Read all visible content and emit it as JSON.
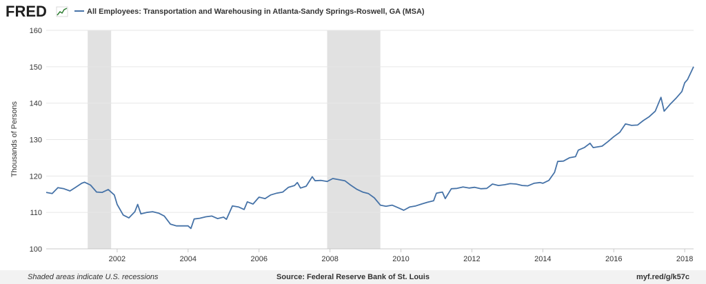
{
  "brand": {
    "logo_text": "FRED"
  },
  "chart_data": {
    "type": "line",
    "title": "All Employees: Transportation and Warehousing in Atlanta-Sandy Springs-Roswell, GA (MSA)",
    "xlabel": "",
    "ylabel": "Thousands of Persons",
    "xlim": [
      2000.0,
      2018.25
    ],
    "ylim": [
      100,
      160
    ],
    "x_ticks": [
      2002,
      2004,
      2006,
      2008,
      2010,
      2012,
      2014,
      2016,
      2018
    ],
    "x_tick_labels": [
      "2002",
      "2004",
      "2006",
      "2008",
      "2010",
      "2012",
      "2014",
      "2016",
      "2018"
    ],
    "y_ticks": [
      100,
      110,
      120,
      130,
      140,
      150,
      160
    ],
    "y_tick_labels": [
      "100",
      "110",
      "120",
      "130",
      "140",
      "150",
      "160"
    ],
    "grid": true,
    "line_color": "#4572a7",
    "recession_color": "#e1e1e1",
    "recessions": [
      [
        2001.17,
        2001.83
      ],
      [
        2007.92,
        2009.42
      ]
    ],
    "series": [
      {
        "name": "All Employees: Transportation and Warehousing in Atlanta-Sandy Springs-Roswell, GA (MSA)",
        "points": [
          [
            2000.0,
            115.5
          ],
          [
            2000.17,
            115.2
          ],
          [
            2000.33,
            116.8
          ],
          [
            2000.5,
            116.5
          ],
          [
            2000.67,
            115.9
          ],
          [
            2000.83,
            116.9
          ],
          [
            2001.0,
            118.0
          ],
          [
            2001.08,
            118.3
          ],
          [
            2001.25,
            117.5
          ],
          [
            2001.42,
            115.6
          ],
          [
            2001.58,
            115.5
          ],
          [
            2001.75,
            116.3
          ],
          [
            2001.92,
            114.8
          ],
          [
            2002.0,
            112.2
          ],
          [
            2002.17,
            109.3
          ],
          [
            2002.33,
            108.5
          ],
          [
            2002.5,
            110.2
          ],
          [
            2002.58,
            112.2
          ],
          [
            2002.67,
            109.6
          ],
          [
            2002.83,
            110.0
          ],
          [
            2003.0,
            110.2
          ],
          [
            2003.17,
            109.8
          ],
          [
            2003.33,
            109.0
          ],
          [
            2003.5,
            106.8
          ],
          [
            2003.67,
            106.3
          ],
          [
            2003.83,
            106.3
          ],
          [
            2004.0,
            106.3
          ],
          [
            2004.08,
            105.6
          ],
          [
            2004.17,
            108.2
          ],
          [
            2004.33,
            108.4
          ],
          [
            2004.5,
            108.8
          ],
          [
            2004.67,
            109.0
          ],
          [
            2004.83,
            108.3
          ],
          [
            2005.0,
            108.7
          ],
          [
            2005.08,
            108.1
          ],
          [
            2005.25,
            111.8
          ],
          [
            2005.42,
            111.5
          ],
          [
            2005.58,
            110.8
          ],
          [
            2005.67,
            112.9
          ],
          [
            2005.83,
            112.3
          ],
          [
            2006.0,
            114.2
          ],
          [
            2006.17,
            113.8
          ],
          [
            2006.33,
            114.8
          ],
          [
            2006.5,
            115.3
          ],
          [
            2006.67,
            115.6
          ],
          [
            2006.83,
            116.9
          ],
          [
            2007.0,
            117.4
          ],
          [
            2007.08,
            118.2
          ],
          [
            2007.17,
            116.7
          ],
          [
            2007.33,
            117.2
          ],
          [
            2007.5,
            119.8
          ],
          [
            2007.58,
            118.7
          ],
          [
            2007.75,
            118.8
          ],
          [
            2007.92,
            118.5
          ],
          [
            2008.08,
            119.3
          ],
          [
            2008.25,
            119.0
          ],
          [
            2008.42,
            118.7
          ],
          [
            2008.58,
            117.5
          ],
          [
            2008.75,
            116.4
          ],
          [
            2008.92,
            115.6
          ],
          [
            2009.08,
            115.2
          ],
          [
            2009.25,
            114.0
          ],
          [
            2009.42,
            112.0
          ],
          [
            2009.58,
            111.7
          ],
          [
            2009.75,
            112.0
          ],
          [
            2009.92,
            111.3
          ],
          [
            2010.08,
            110.6
          ],
          [
            2010.25,
            111.5
          ],
          [
            2010.42,
            111.8
          ],
          [
            2010.58,
            112.3
          ],
          [
            2010.75,
            112.8
          ],
          [
            2010.92,
            113.2
          ],
          [
            2011.0,
            115.3
          ],
          [
            2011.17,
            115.6
          ],
          [
            2011.25,
            113.8
          ],
          [
            2011.42,
            116.5
          ],
          [
            2011.58,
            116.6
          ],
          [
            2011.75,
            117.0
          ],
          [
            2011.92,
            116.7
          ],
          [
            2012.08,
            116.9
          ],
          [
            2012.25,
            116.5
          ],
          [
            2012.42,
            116.6
          ],
          [
            2012.58,
            117.8
          ],
          [
            2012.75,
            117.4
          ],
          [
            2012.92,
            117.6
          ],
          [
            2013.08,
            117.9
          ],
          [
            2013.25,
            117.8
          ],
          [
            2013.42,
            117.4
          ],
          [
            2013.58,
            117.3
          ],
          [
            2013.75,
            118.0
          ],
          [
            2013.92,
            118.2
          ],
          [
            2014.0,
            118.0
          ],
          [
            2014.17,
            118.8
          ],
          [
            2014.33,
            121.0
          ],
          [
            2014.42,
            124.0
          ],
          [
            2014.58,
            124.1
          ],
          [
            2014.75,
            125.0
          ],
          [
            2014.92,
            125.3
          ],
          [
            2015.0,
            127.1
          ],
          [
            2015.17,
            127.8
          ],
          [
            2015.33,
            129.0
          ],
          [
            2015.42,
            127.8
          ],
          [
            2015.67,
            128.2
          ],
          [
            2015.83,
            129.4
          ],
          [
            2016.0,
            130.8
          ],
          [
            2016.17,
            132.0
          ],
          [
            2016.33,
            134.3
          ],
          [
            2016.5,
            133.9
          ],
          [
            2016.67,
            134.0
          ],
          [
            2016.83,
            135.2
          ],
          [
            2017.0,
            136.3
          ],
          [
            2017.17,
            137.8
          ],
          [
            2017.33,
            141.6
          ],
          [
            2017.42,
            137.8
          ],
          [
            2017.58,
            139.6
          ],
          [
            2017.75,
            141.3
          ],
          [
            2017.92,
            143.2
          ],
          [
            2018.0,
            145.6
          ],
          [
            2018.08,
            146.5
          ],
          [
            2018.25,
            150.0
          ]
        ]
      }
    ]
  },
  "footer": {
    "recession_note": "Shaded areas indicate U.S. recessions",
    "source": "Source: Federal Reserve Bank of St. Louis",
    "short_url": "myf.red/g/k57c"
  }
}
